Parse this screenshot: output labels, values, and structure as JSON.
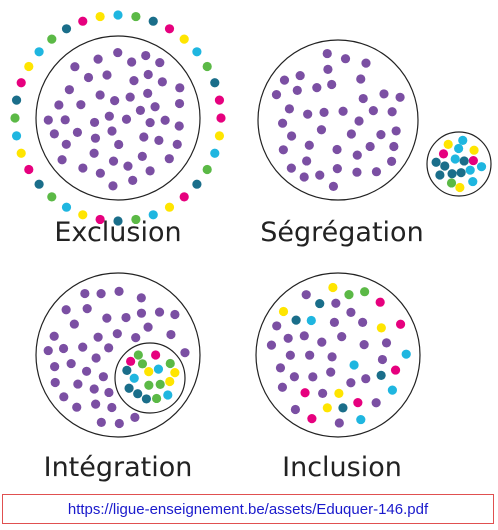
{
  "diagrams": [
    {
      "label": "Exclusion"
    },
    {
      "label": "Ségrégation"
    },
    {
      "label": "Intégration"
    },
    {
      "label": "Inclusion"
    }
  ],
  "footer": {
    "url": "https://ligue-enseignement.be/assets/Eduquer-146.pdf"
  }
}
